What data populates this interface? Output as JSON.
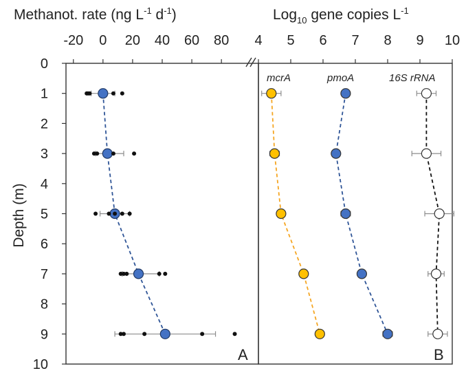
{
  "chart_data": [
    {
      "panel_id": "A",
      "type": "scatter",
      "xlabel_main": "Methanot. rate (ng L",
      "xlabel_sup1": "-1",
      "xlabel_mid": " d",
      "xlabel_sup2": "-1",
      "xlabel_end": ")",
      "ylabel": "Depth (m)",
      "xlim": [
        -25,
        105
      ],
      "ylim": [
        0,
        10
      ],
      "xticks": [
        -20,
        0,
        20,
        40,
        60,
        80
      ],
      "yticks": [
        0,
        1,
        2,
        3,
        4,
        5,
        6,
        7,
        8,
        9,
        10
      ],
      "axis_break": "//",
      "mean_color": "#4472c4",
      "line_color": "#2f5597",
      "means": [
        {
          "depth": 1,
          "rate": 0,
          "err_low": -8,
          "err_high": 8
        },
        {
          "depth": 3,
          "rate": 3,
          "err_low": -5,
          "err_high": 14
        },
        {
          "depth": 5,
          "rate": 8,
          "err_low": -2,
          "err_high": 18
        },
        {
          "depth": 7,
          "rate": 24,
          "err_low": 13,
          "err_high": 38
        },
        {
          "depth": 9,
          "rate": 42,
          "err_low": 8,
          "err_high": 76
        }
      ],
      "replicates": [
        {
          "depth": 1,
          "rates": [
            -11,
            -10,
            -9,
            7,
            13
          ]
        },
        {
          "depth": 3,
          "rates": [
            -6,
            -4,
            7,
            21
          ]
        },
        {
          "depth": 5,
          "rates": [
            -5,
            4,
            8,
            13,
            18
          ]
        },
        {
          "depth": 7,
          "rates": [
            12,
            14,
            16,
            38,
            42
          ]
        },
        {
          "depth": 9,
          "rates": [
            12,
            14,
            28,
            67,
            89
          ]
        }
      ]
    },
    {
      "panel_id": "B",
      "type": "scatter",
      "xlabel_prefix": "Log",
      "xlabel_sub": "10",
      "xlabel_mid": " gene copies L",
      "xlabel_sup": "-1",
      "xlim": [
        4,
        10
      ],
      "ylim": [
        0,
        10
      ],
      "xticks": [
        4,
        5,
        6,
        7,
        8,
        9,
        10
      ],
      "series": [
        {
          "name": "mcrA",
          "fill": "#ffc000",
          "line_color": "#f5a623",
          "depths": [
            1,
            3,
            5,
            7,
            9
          ],
          "values": [
            4.4,
            4.5,
            4.7,
            5.4,
            5.9
          ],
          "errors": [
            0.3,
            0.15,
            0.1,
            0.1,
            0.1
          ]
        },
        {
          "name": "pmoA",
          "fill": "#4472c4",
          "line_color": "#2f5597",
          "depths": [
            1,
            3,
            5,
            7,
            9
          ],
          "values": [
            6.7,
            6.4,
            6.7,
            7.2,
            8.0
          ],
          "errors": [
            0.1,
            0.1,
            0.15,
            0.1,
            0.15
          ]
        },
        {
          "name": "16S rRNA",
          "fill": "#ffffff",
          "line_color": "#111111",
          "depths": [
            1,
            3,
            5,
            7,
            9
          ],
          "values": [
            9.2,
            9.2,
            9.6,
            9.5,
            9.55
          ],
          "errors": [
            0.3,
            0.45,
            0.45,
            0.25,
            0.3
          ]
        }
      ]
    }
  ]
}
